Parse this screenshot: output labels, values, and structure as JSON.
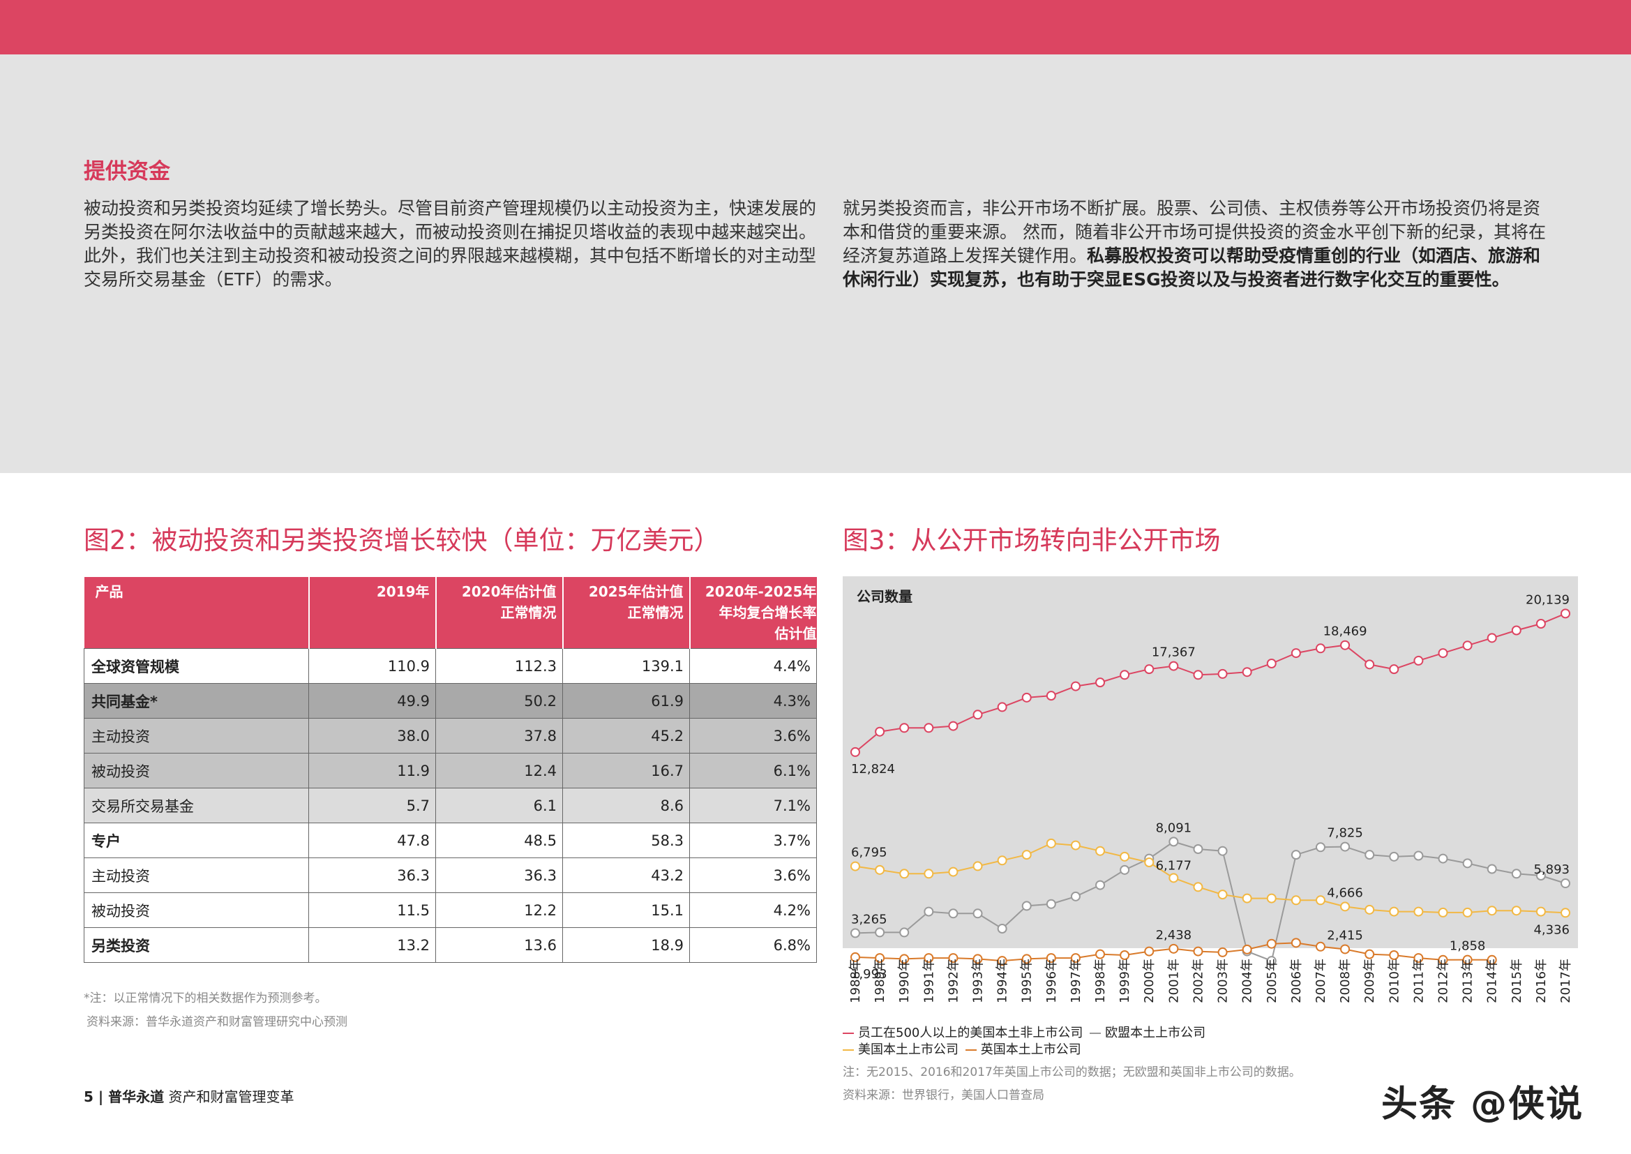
{
  "section": {
    "title": "提供资金",
    "para_left": "被动投资和另类投资均延续了增长势头。尽管目前资产管理规模仍以主动投资为主，快速发展的另类投资在阿尔法收益中的贡献越来越大，而被动投资则在捕捉贝塔收益的表现中越来越突出。此外，我们也关注到主动投资和被动投资之间的界限越来越模糊，其中包括不断增长的对主动型交易所交易基金（ETF）的需求。",
    "para_right_plain": "就另类投资而言，非公开市场不断扩展。股票、公司债、主权债券等公开市场投资仍将是资本和借贷的重要来源。 然而，随着非公开市场可提供投资的资金水平创下新的纪录，其将在经济复苏道路上发挥关键作用。",
    "para_right_bold": "私募股权投资可以帮助受疫情重创的行业（如酒店、旅游和休闲行业）实现复苏，也有助于突显ESG投资以及与投资者进行数字化交互的重要性。"
  },
  "fig2": {
    "title": "图2：被动投资和另类投资增长较快（单位：万亿美元）",
    "headers": [
      {
        "l1": "产品",
        "l2": "",
        "l3": ""
      },
      {
        "l1": "2019年",
        "l2": "",
        "l3": ""
      },
      {
        "l1": "2020年估计值",
        "l2": "正常情况",
        "l3": ""
      },
      {
        "l1": "2025年估计值",
        "l2": "正常情况",
        "l3": ""
      },
      {
        "l1": "2020年-2025年",
        "l2": "年均复合增长率",
        "l3": "估计值"
      }
    ],
    "rows": [
      {
        "label": "全球资管规模",
        "values": [
          "110.9",
          "112.3",
          "139.1",
          "4.4%"
        ]
      },
      {
        "label": "共同基金*",
        "values": [
          "49.9",
          "50.2",
          "61.9",
          "4.3%"
        ]
      },
      {
        "label": "主动投资",
        "values": [
          "38.0",
          "37.8",
          "45.2",
          "3.6%"
        ]
      },
      {
        "label": "被动投资",
        "values": [
          "11.9",
          "12.4",
          "16.7",
          "6.1%"
        ]
      },
      {
        "label": "交易所交易基金",
        "values": [
          "5.7",
          "6.1",
          "8.6",
          "7.1%"
        ]
      },
      {
        "label": "专户",
        "values": [
          "47.8",
          "48.5",
          "58.3",
          "3.7%"
        ]
      },
      {
        "label": "主动投资",
        "values": [
          "36.3",
          "36.3",
          "43.2",
          "3.6%"
        ]
      },
      {
        "label": "被动投资",
        "values": [
          "11.5",
          "12.2",
          "15.1",
          "4.2%"
        ]
      },
      {
        "label": "另类投资",
        "values": [
          "13.2",
          "13.6",
          "18.9",
          "6.8%"
        ]
      }
    ],
    "note": "*注：以正常情况下的相关数据作为预测参考。",
    "source": "资料来源：普华永道资产和财富管理研究中心预测"
  },
  "fig3": {
    "title": "图3：从公开市场转向非公开市场",
    "legend": [
      {
        "name": "员工在500人以上的美国本土非上市公司",
        "color": "#dc4562"
      },
      {
        "name": "欧盟本土上市公司",
        "color": "#9a9a9a"
      },
      {
        "name": "美国本土上市公司",
        "color": "#f2b844"
      },
      {
        "name": "英国本土上市公司",
        "color": "#d97a2a"
      }
    ],
    "note": "注：无2015、2016和2017年英国上市公司的数据；无欧盟和英国非上市公司的数据。",
    "source": "资料来源：世界银行，美国人口普查局"
  },
  "chart_data": {
    "type": "line",
    "ylabel": "公司数量",
    "x": [
      "1988年",
      "1989年",
      "1990年",
      "1991年",
      "1992年",
      "1993年",
      "1994年",
      "1995年",
      "1996年",
      "1997年",
      "1998年",
      "1999年",
      "2000年",
      "2001年",
      "2002年",
      "2003年",
      "2004年",
      "2005年",
      "2006年",
      "2007年",
      "2008年",
      "2009年",
      "2010年",
      "2011年",
      "2012年",
      "2013年",
      "2014年",
      "2015年",
      "2016年",
      "2017年"
    ],
    "ylim": [
      0,
      21000
    ],
    "series": [
      {
        "name": "员工在500人以上的美国本土非上市公司",
        "color": "#dc4562",
        "values": [
          12824,
          13900,
          14100,
          14100,
          14200,
          14800,
          15200,
          15700,
          15800,
          16300,
          16500,
          16900,
          17200,
          17367,
          16900,
          16950,
          17050,
          17500,
          18050,
          18300,
          18469,
          17450,
          17200,
          17650,
          18050,
          18450,
          18850,
          19250,
          19600,
          20139
        ]
      },
      {
        "name": "欧盟本土上市公司",
        "color": "#9a9a9a",
        "values": [
          3265,
          3300,
          3300,
          4400,
          4300,
          4300,
          3500,
          4700,
          4800,
          5200,
          5800,
          6600,
          7200,
          8091,
          7700,
          7600,
          2300,
          1800,
          7400,
          7800,
          7825,
          7400,
          7300,
          7350,
          7200,
          6950,
          6650,
          6400,
          6300,
          5893
        ]
      },
      {
        "name": "美国本土上市公司",
        "color": "#f2b844",
        "values": [
          6795,
          6600,
          6400,
          6400,
          6500,
          6800,
          7100,
          7400,
          8000,
          7900,
          7600,
          7300,
          7000,
          6177,
          5700,
          5300,
          5100,
          5100,
          5000,
          5000,
          4666,
          4500,
          4400,
          4400,
          4350,
          4350,
          4450,
          4450,
          4400,
          4336
        ]
      },
      {
        "name": "英国本土上市公司",
        "color": "#d97a2a",
        "values": [
          1993,
          1950,
          1900,
          1950,
          1950,
          1900,
          1800,
          1900,
          1950,
          1950,
          2150,
          2100,
          2300,
          2438,
          2300,
          2250,
          2400,
          2700,
          2750,
          2550,
          2415,
          2150,
          2100,
          1950,
          1850,
          1858,
          1850,
          null,
          null,
          null
        ]
      }
    ],
    "data_labels": [
      {
        "series": 0,
        "index": 0,
        "text": "12,824"
      },
      {
        "series": 0,
        "index": 13,
        "text": "17,367"
      },
      {
        "series": 0,
        "index": 20,
        "text": "18,469"
      },
      {
        "series": 0,
        "index": 29,
        "text": "20,139"
      },
      {
        "series": 1,
        "index": 0,
        "text": "3,265"
      },
      {
        "series": 1,
        "index": 13,
        "text": "8,091"
      },
      {
        "series": 1,
        "index": 20,
        "text": "7,825"
      },
      {
        "series": 1,
        "index": 29,
        "text": "5,893"
      },
      {
        "series": 2,
        "index": 0,
        "text": "6,795"
      },
      {
        "series": 2,
        "index": 13,
        "text": "6,177"
      },
      {
        "series": 2,
        "index": 20,
        "text": "4,666"
      },
      {
        "series": 2,
        "index": 29,
        "text": "4,336"
      },
      {
        "series": 3,
        "index": 0,
        "text": "1,993"
      },
      {
        "series": 3,
        "index": 13,
        "text": "2,438"
      },
      {
        "series": 3,
        "index": 20,
        "text": "2,415"
      },
      {
        "series": 3,
        "index": 25,
        "text": "1,858"
      }
    ]
  },
  "footer": {
    "page": "5 | ",
    "brand": "普华永道",
    "subtitle": " 资产和财富管理变革"
  },
  "watermark": "头条 @侠说"
}
